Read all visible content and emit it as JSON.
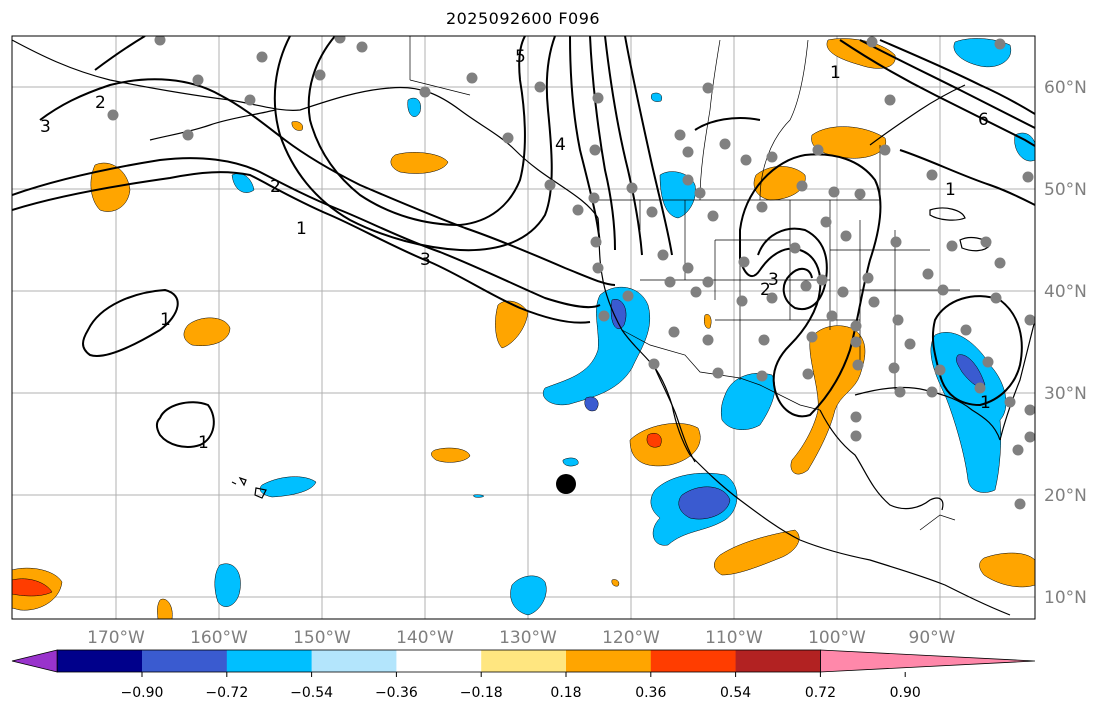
{
  "title": "2025092600 F096",
  "map": {
    "lon_labels": [
      "170°W",
      "160°W",
      "150°W",
      "140°W",
      "130°W",
      "120°W",
      "110°W",
      "100°W",
      "90°W"
    ],
    "lat_labels": [
      "60°N",
      "50°N",
      "40°N",
      "30°N",
      "20°N",
      "10°N"
    ],
    "contour_labels": [
      "1",
      "1",
      "1",
      "1",
      "1",
      "1",
      "2",
      "2",
      "2",
      "3",
      "3",
      "3",
      "4",
      "5",
      "6"
    ],
    "grid": true
  },
  "colorbar": {
    "ticks": [
      "−0.90",
      "−0.72",
      "−0.54",
      "−0.36",
      "−0.18",
      "0.18",
      "0.36",
      "0.54",
      "0.72",
      "0.90"
    ],
    "colors": [
      "#9933cc",
      "#00008b",
      "#3a5bd0",
      "#00bfff",
      "#b3e5fc",
      "#ffffff",
      "#ffe680",
      "#ffa500",
      "#ff3d00",
      "#b22222",
      "#ff88aa"
    ]
  }
}
